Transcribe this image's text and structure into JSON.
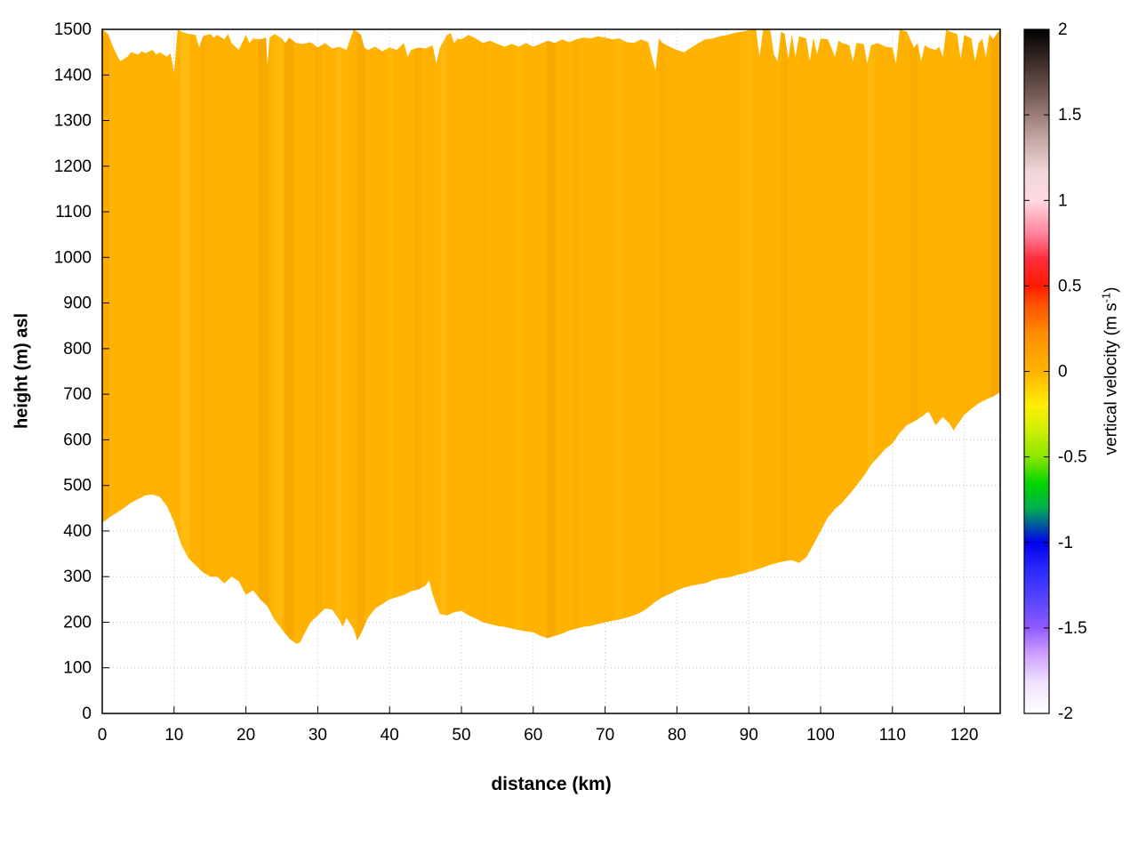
{
  "chart_data": {
    "type": "heatmap",
    "title": "",
    "xlabel": "distance (km)",
    "ylabel": "height (m) asl",
    "colorbar_label_parts": {
      "prefix": "vertical velocity (m s",
      "sup": "-1",
      "suffix": ")"
    },
    "xlim": [
      0,
      125
    ],
    "ylim": [
      0,
      1500
    ],
    "grid": "dotted",
    "x_ticks": [
      0,
      10,
      20,
      30,
      40,
      50,
      60,
      70,
      80,
      90,
      100,
      110,
      120
    ],
    "y_ticks": [
      0,
      100,
      200,
      300,
      400,
      500,
      600,
      700,
      800,
      900,
      1000,
      1100,
      1200,
      1300,
      1400,
      1500
    ],
    "colorbar_range": [
      -2,
      2
    ],
    "colorbar_tick_values": [
      2,
      1.5,
      1,
      0.5,
      0,
      -0.5,
      -1,
      -1.5,
      -2
    ],
    "colorbar_tick_labels": [
      "2",
      "1.5",
      "1",
      "0.5",
      "0",
      "-0.5",
      "-1",
      "-1.5",
      "-2"
    ],
    "fill_color": "#ffb300",
    "fill_value_range": [
      0,
      0.1
    ],
    "palette": [
      {
        "t": 0.0,
        "color": "#ffffff"
      },
      {
        "t": 0.045,
        "color": "#f0e2ff"
      },
      {
        "t": 0.09,
        "color": "#cc99ff"
      },
      {
        "t": 0.125,
        "color": "#8f5bff"
      },
      {
        "t": 0.165,
        "color": "#5a46ff"
      },
      {
        "t": 0.21,
        "color": "#2a2aff"
      },
      {
        "t": 0.25,
        "color": "#0000ee"
      },
      {
        "t": 0.3,
        "color": "#00b050"
      },
      {
        "t": 0.335,
        "color": "#00d400"
      },
      {
        "t": 0.375,
        "color": "#8ce600"
      },
      {
        "t": 0.42,
        "color": "#d8f000"
      },
      {
        "t": 0.45,
        "color": "#ffee00"
      },
      {
        "t": 0.5,
        "color": "#ffb300"
      },
      {
        "t": 0.555,
        "color": "#ff8e00"
      },
      {
        "t": 0.6,
        "color": "#ff4d00"
      },
      {
        "t": 0.625,
        "color": "#ff1a00"
      },
      {
        "t": 0.665,
        "color": "#ff2e3c"
      },
      {
        "t": 0.7,
        "color": "#ff8099"
      },
      {
        "t": 0.75,
        "color": "#ffd9e0"
      },
      {
        "t": 0.79,
        "color": "#f0d8da"
      },
      {
        "t": 0.84,
        "color": "#c4a6a4"
      },
      {
        "t": 0.875,
        "color": "#9a7c78"
      },
      {
        "t": 0.91,
        "color": "#6e5550"
      },
      {
        "t": 0.955,
        "color": "#3a2a26"
      },
      {
        "t": 1.0,
        "color": "#000000"
      }
    ],
    "top_profile": [
      [
        0,
        1500
      ],
      [
        0.8,
        1490
      ],
      [
        1.5,
        1462
      ],
      [
        2,
        1445
      ],
      [
        2.5,
        1430
      ],
      [
        3.5,
        1440
      ],
      [
        4,
        1450
      ],
      [
        5,
        1445
      ],
      [
        5.5,
        1452
      ],
      [
        6,
        1448
      ],
      [
        7,
        1455
      ],
      [
        7.5,
        1445
      ],
      [
        8,
        1450
      ],
      [
        9,
        1440
      ],
      [
        9.5,
        1448
      ],
      [
        10,
        1405
      ],
      [
        10.5,
        1500
      ],
      [
        11,
        1495
      ],
      [
        12,
        1490
      ],
      [
        13,
        1488
      ],
      [
        13.5,
        1460
      ],
      [
        14,
        1485
      ],
      [
        15,
        1490
      ],
      [
        15.5,
        1482
      ],
      [
        16,
        1488
      ],
      [
        17,
        1478
      ],
      [
        17.5,
        1490
      ],
      [
        18,
        1470
      ],
      [
        19,
        1455
      ],
      [
        20,
        1488
      ],
      [
        20.5,
        1470
      ],
      [
        21,
        1480
      ],
      [
        22,
        1478
      ],
      [
        22.8,
        1482
      ],
      [
        23,
        1420
      ],
      [
        23.3,
        1482
      ],
      [
        24,
        1490
      ],
      [
        25,
        1480
      ],
      [
        25.5,
        1470
      ],
      [
        26,
        1482
      ],
      [
        27,
        1470
      ],
      [
        28,
        1468
      ],
      [
        29,
        1472
      ],
      [
        30,
        1460
      ],
      [
        31,
        1470
      ],
      [
        32,
        1458
      ],
      [
        33,
        1462
      ],
      [
        34,
        1455
      ],
      [
        35,
        1500
      ],
      [
        35.5,
        1495
      ],
      [
        36,
        1488
      ],
      [
        36.5,
        1460
      ],
      [
        37,
        1455
      ],
      [
        38,
        1462
      ],
      [
        39,
        1452
      ],
      [
        40,
        1460
      ],
      [
        41,
        1455
      ],
      [
        42,
        1470
      ],
      [
        42.5,
        1440
      ],
      [
        43,
        1455
      ],
      [
        44,
        1460
      ],
      [
        45,
        1458
      ],
      [
        46,
        1465
      ],
      [
        46.5,
        1425
      ],
      [
        47,
        1460
      ],
      [
        48,
        1488
      ],
      [
        48.5,
        1492
      ],
      [
        49,
        1470
      ],
      [
        49.5,
        1480
      ],
      [
        50,
        1478
      ],
      [
        51,
        1488
      ],
      [
        52,
        1480
      ],
      [
        53,
        1470
      ],
      [
        54,
        1475
      ],
      [
        55,
        1468
      ],
      [
        56,
        1462
      ],
      [
        57,
        1468
      ],
      [
        58,
        1462
      ],
      [
        59,
        1470
      ],
      [
        60,
        1462
      ],
      [
        61,
        1468
      ],
      [
        62,
        1475
      ],
      [
        63,
        1470
      ],
      [
        64,
        1478
      ],
      [
        65,
        1472
      ],
      [
        66,
        1478
      ],
      [
        67,
        1482
      ],
      [
        68,
        1480
      ],
      [
        69,
        1485
      ],
      [
        70,
        1482
      ],
      [
        71,
        1478
      ],
      [
        72,
        1480
      ],
      [
        73,
        1472
      ],
      [
        74,
        1470
      ],
      [
        75,
        1478
      ],
      [
        76,
        1472
      ],
      [
        77,
        1410
      ],
      [
        77.5,
        1480
      ],
      [
        78,
        1470
      ],
      [
        79,
        1462
      ],
      [
        80,
        1455
      ],
      [
        81,
        1450
      ],
      [
        82,
        1460
      ],
      [
        83,
        1470
      ],
      [
        84,
        1478
      ],
      [
        85,
        1480
      ],
      [
        86,
        1485
      ],
      [
        87,
        1488
      ],
      [
        88,
        1492
      ],
      [
        89,
        1495
      ],
      [
        90,
        1498
      ],
      [
        91,
        1500
      ],
      [
        91.5,
        1440
      ],
      [
        92,
        1500
      ],
      [
        93,
        1498
      ],
      [
        93.5,
        1445
      ],
      [
        94,
        1430
      ],
      [
        94.5,
        1495
      ],
      [
        95,
        1490
      ],
      [
        95.5,
        1435
      ],
      [
        96,
        1490
      ],
      [
        96.5,
        1440
      ],
      [
        97,
        1485
      ],
      [
        98,
        1480
      ],
      [
        98.5,
        1430
      ],
      [
        99,
        1482
      ],
      [
        99.5,
        1445
      ],
      [
        100,
        1480
      ],
      [
        101,
        1478
      ],
      [
        102,
        1440
      ],
      [
        102.5,
        1475
      ],
      [
        103,
        1470
      ],
      [
        104,
        1465
      ],
      [
        104.5,
        1430
      ],
      [
        105,
        1470
      ],
      [
        106,
        1468
      ],
      [
        106.5,
        1425
      ],
      [
        107,
        1465
      ],
      [
        108,
        1470
      ],
      [
        109,
        1462
      ],
      [
        110,
        1460
      ],
      [
        110.5,
        1425
      ],
      [
        111,
        1500
      ],
      [
        112,
        1495
      ],
      [
        113,
        1460
      ],
      [
        113.5,
        1470
      ],
      [
        114,
        1430
      ],
      [
        114.5,
        1465
      ],
      [
        115,
        1460
      ],
      [
        116,
        1455
      ],
      [
        116.5,
        1462
      ],
      [
        117,
        1440
      ],
      [
        117.5,
        1500
      ],
      [
        118,
        1495
      ],
      [
        119,
        1490
      ],
      [
        119.5,
        1435
      ],
      [
        120,
        1488
      ],
      [
        121,
        1480
      ],
      [
        121.5,
        1430
      ],
      [
        122,
        1470
      ],
      [
        122.5,
        1480
      ],
      [
        123,
        1440
      ],
      [
        123.5,
        1490
      ],
      [
        124,
        1478
      ],
      [
        125,
        1500
      ]
    ],
    "terrain_profile": [
      [
        0,
        418
      ],
      [
        1,
        430
      ],
      [
        2,
        440
      ],
      [
        3,
        450
      ],
      [
        4,
        462
      ],
      [
        5,
        470
      ],
      [
        6,
        478
      ],
      [
        7,
        480
      ],
      [
        8,
        475
      ],
      [
        9,
        455
      ],
      [
        10,
        420
      ],
      [
        11,
        370
      ],
      [
        12,
        340
      ],
      [
        13,
        325
      ],
      [
        14,
        310
      ],
      [
        15,
        300
      ],
      [
        16,
        300
      ],
      [
        17,
        285
      ],
      [
        18,
        300
      ],
      [
        19,
        290
      ],
      [
        20,
        260
      ],
      [
        21,
        270
      ],
      [
        22,
        250
      ],
      [
        23,
        235
      ],
      [
        24,
        205
      ],
      [
        25,
        185
      ],
      [
        26,
        165
      ],
      [
        27,
        153
      ],
      [
        27.5,
        155
      ],
      [
        28,
        170
      ],
      [
        29,
        200
      ],
      [
        30,
        215
      ],
      [
        31,
        230
      ],
      [
        32,
        228
      ],
      [
        33,
        205
      ],
      [
        33.5,
        190
      ],
      [
        34,
        210
      ],
      [
        35,
        185
      ],
      [
        35.5,
        160
      ],
      [
        36,
        175
      ],
      [
        37,
        210
      ],
      [
        38,
        230
      ],
      [
        39,
        240
      ],
      [
        40,
        250
      ],
      [
        41,
        255
      ],
      [
        42,
        260
      ],
      [
        43,
        268
      ],
      [
        44,
        272
      ],
      [
        45,
        280
      ],
      [
        45.5,
        292
      ],
      [
        46,
        260
      ],
      [
        47,
        218
      ],
      [
        48,
        215
      ],
      [
        49,
        222
      ],
      [
        50,
        225
      ],
      [
        51,
        215
      ],
      [
        52,
        208
      ],
      [
        53,
        200
      ],
      [
        54,
        196
      ],
      [
        55,
        192
      ],
      [
        56,
        190
      ],
      [
        57,
        186
      ],
      [
        58,
        183
      ],
      [
        59,
        180
      ],
      [
        60,
        178
      ],
      [
        61,
        170
      ],
      [
        62,
        165
      ],
      [
        63,
        170
      ],
      [
        64,
        175
      ],
      [
        65,
        182
      ],
      [
        66,
        186
      ],
      [
        67,
        190
      ],
      [
        68,
        192
      ],
      [
        69,
        196
      ],
      [
        70,
        200
      ],
      [
        71,
        203
      ],
      [
        72,
        206
      ],
      [
        73,
        210
      ],
      [
        74,
        215
      ],
      [
        75,
        222
      ],
      [
        76,
        232
      ],
      [
        77,
        245
      ],
      [
        78,
        255
      ],
      [
        79,
        262
      ],
      [
        80,
        270
      ],
      [
        81,
        276
      ],
      [
        82,
        280
      ],
      [
        83,
        283
      ],
      [
        84,
        286
      ],
      [
        85,
        292
      ],
      [
        86,
        296
      ],
      [
        87,
        298
      ],
      [
        88,
        302
      ],
      [
        89,
        306
      ],
      [
        90,
        310
      ],
      [
        91,
        315
      ],
      [
        92,
        320
      ],
      [
        93,
        326
      ],
      [
        94,
        330
      ],
      [
        95,
        334
      ],
      [
        96,
        336
      ],
      [
        97,
        330
      ],
      [
        98,
        342
      ],
      [
        99,
        370
      ],
      [
        100,
        400
      ],
      [
        101,
        430
      ],
      [
        102,
        448
      ],
      [
        103,
        462
      ],
      [
        104,
        480
      ],
      [
        105,
        500
      ],
      [
        106,
        520
      ],
      [
        107,
        545
      ],
      [
        108,
        562
      ],
      [
        109,
        580
      ],
      [
        110,
        592
      ],
      [
        111,
        615
      ],
      [
        112,
        632
      ],
      [
        113,
        640
      ],
      [
        114,
        650
      ],
      [
        115,
        662
      ],
      [
        115.5,
        648
      ],
      [
        116,
        632
      ],
      [
        117,
        650
      ],
      [
        118,
        635
      ],
      [
        118.5,
        620
      ],
      [
        119,
        632
      ],
      [
        120,
        655
      ],
      [
        121,
        668
      ],
      [
        122,
        680
      ],
      [
        123,
        688
      ],
      [
        124,
        695
      ],
      [
        125,
        705
      ]
    ],
    "streaks": [
      {
        "x": 11.5,
        "w": 1.2,
        "color": "#ffc21e",
        "opacity": 0.5
      },
      {
        "x": 14,
        "w": 0.8,
        "color": "#f7a300",
        "opacity": 0.4
      },
      {
        "x": 22.5,
        "w": 1.5,
        "color": "#f09e00",
        "opacity": 0.45
      },
      {
        "x": 24.5,
        "w": 1.0,
        "color": "#ffc21e",
        "opacity": 0.4
      },
      {
        "x": 26,
        "w": 1.2,
        "color": "#ef9d00",
        "opacity": 0.5
      },
      {
        "x": 30,
        "w": 0.9,
        "color": "#f5a200",
        "opacity": 0.4
      },
      {
        "x": 33,
        "w": 0.7,
        "color": "#ffc32a",
        "opacity": 0.4
      },
      {
        "x": 36,
        "w": 1.1,
        "color": "#f09e00",
        "opacity": 0.45
      },
      {
        "x": 40,
        "w": 0.8,
        "color": "#ffbf17",
        "opacity": 0.35
      },
      {
        "x": 44,
        "w": 1.0,
        "color": "#f2a000",
        "opacity": 0.4
      },
      {
        "x": 47.5,
        "w": 0.9,
        "color": "#ffc32a",
        "opacity": 0.35
      },
      {
        "x": 53,
        "w": 1.2,
        "color": "#f7a800",
        "opacity": 0.3
      },
      {
        "x": 58,
        "w": 0.8,
        "color": "#ffbd12",
        "opacity": 0.3
      },
      {
        "x": 62.5,
        "w": 1.4,
        "color": "#ef9d00",
        "opacity": 0.45
      },
      {
        "x": 66,
        "w": 0.8,
        "color": "#f5a500",
        "opacity": 0.3
      },
      {
        "x": 72,
        "w": 1.0,
        "color": "#ffc21e",
        "opacity": 0.3
      },
      {
        "x": 78,
        "w": 0.9,
        "color": "#f5a200",
        "opacity": 0.35
      },
      {
        "x": 84,
        "w": 1.1,
        "color": "#f7a800",
        "opacity": 0.3
      },
      {
        "x": 90,
        "w": 0.8,
        "color": "#ffc21e",
        "opacity": 0.3
      },
      {
        "x": 95,
        "w": 1.0,
        "color": "#f2a000",
        "opacity": 0.35
      },
      {
        "x": 101,
        "w": 1.2,
        "color": "#f7a800",
        "opacity": 0.3
      },
      {
        "x": 107,
        "w": 0.9,
        "color": "#ffc21e",
        "opacity": 0.3
      },
      {
        "x": 113,
        "w": 1.0,
        "color": "#f2a000",
        "opacity": 0.35
      },
      {
        "x": 120,
        "w": 1.3,
        "color": "#f7a800",
        "opacity": 0.3
      },
      {
        "x": 124.3,
        "w": 1.2,
        "color": "#ef9d00",
        "opacity": 0.45
      },
      {
        "x": 0.5,
        "w": 1.0,
        "color": "#ef9d00",
        "opacity": 0.35
      }
    ]
  }
}
